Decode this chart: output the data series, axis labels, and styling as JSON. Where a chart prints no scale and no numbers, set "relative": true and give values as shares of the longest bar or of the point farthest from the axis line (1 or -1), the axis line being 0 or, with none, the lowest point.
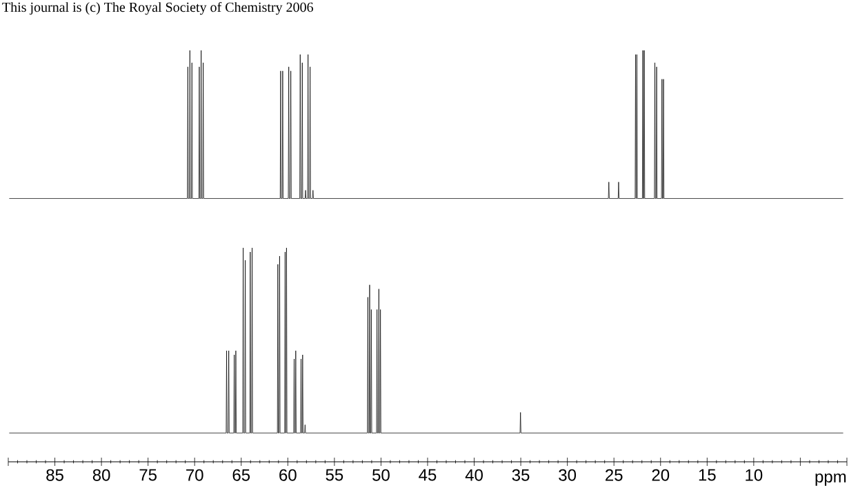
{
  "chart_data": {
    "type": "line",
    "relative": true,
    "xlim": [
      90,
      0
    ],
    "marker": "none",
    "xlabel": "ppm",
    "tick_labels": "x",
    "annotations": [
      "This journal is (c) The Royal Society of Chemistry 2006"
    ],
    "xticks": [
      {
        "value": 90,
        "label": null
      },
      {
        "value": 89,
        "label": null
      },
      {
        "value": 88,
        "label": null
      },
      {
        "value": 87,
        "label": null
      },
      {
        "value": 86,
        "label": null
      },
      85,
      {
        "value": 84,
        "label": null
      },
      {
        "value": 83,
        "label": null
      },
      {
        "value": 82,
        "label": null
      },
      {
        "value": 81,
        "label": null
      },
      80,
      {
        "value": 79,
        "label": null
      },
      {
        "value": 78,
        "label": null
      },
      {
        "value": 77,
        "label": null
      },
      {
        "value": 76,
        "label": null
      },
      75,
      {
        "value": 74,
        "label": null
      },
      {
        "value": 73,
        "label": null
      },
      {
        "value": 72,
        "label": null
      },
      {
        "value": 71,
        "label": null
      },
      70,
      {
        "value": 69,
        "label": null
      },
      {
        "value": 68,
        "label": null
      },
      {
        "value": 67,
        "label": null
      },
      {
        "value": 66,
        "label": null
      },
      65,
      {
        "value": 64,
        "label": null
      },
      {
        "value": 63,
        "label": null
      },
      {
        "value": 62,
        "label": null
      },
      {
        "value": 61,
        "label": null
      },
      60,
      {
        "value": 59,
        "label": null
      },
      {
        "value": 58,
        "label": null
      },
      {
        "value": 57,
        "label": null
      },
      {
        "value": 56,
        "label": null
      },
      55,
      {
        "value": 54,
        "label": null
      },
      {
        "value": 53,
        "label": null
      },
      {
        "value": 52,
        "label": null
      },
      {
        "value": 51,
        "label": null
      },
      50,
      {
        "value": 49,
        "label": null
      },
      {
        "value": 48,
        "label": null
      },
      {
        "value": 47,
        "label": null
      },
      {
        "value": 46,
        "label": null
      },
      45,
      {
        "value": 44,
        "label": null
      },
      {
        "value": 43,
        "label": null
      },
      {
        "value": 42,
        "label": null
      },
      {
        "value": 41,
        "label": null
      },
      40,
      {
        "value": 39,
        "label": null
      },
      {
        "value": 38,
        "label": null
      },
      {
        "value": 37,
        "label": null
      },
      {
        "value": 36,
        "label": null
      },
      35,
      {
        "value": 34,
        "label": null
      },
      {
        "value": 33,
        "label": null
      },
      {
        "value": 32,
        "label": null
      },
      {
        "value": 31,
        "label": null
      },
      30,
      {
        "value": 29,
        "label": null
      },
      {
        "value": 28,
        "label": null
      },
      {
        "value": 27,
        "label": null
      },
      {
        "value": 26,
        "label": null
      },
      25,
      {
        "value": 24,
        "label": null
      },
      {
        "value": 23,
        "label": null
      },
      {
        "value": 22,
        "label": null
      },
      {
        "value": 21,
        "label": null
      },
      20,
      {
        "value": 19,
        "label": null
      },
      {
        "value": 18,
        "label": null
      },
      {
        "value": 17,
        "label": null
      },
      {
        "value": 16,
        "label": null
      },
      15,
      {
        "value": 14,
        "label": null
      },
      {
        "value": 13,
        "label": null
      },
      {
        "value": 12,
        "label": null
      },
      {
        "value": 11,
        "label": null
      },
      10,
      {
        "value": 9,
        "label": null
      },
      {
        "value": 8,
        "label": null
      },
      {
        "value": 7,
        "label": null
      },
      {
        "value": 6,
        "label": null
      },
      {
        "value": 5,
        "label": null
      },
      {
        "value": 4,
        "label": null
      },
      {
        "value": 3,
        "label": null
      },
      {
        "value": 2,
        "label": null
      },
      {
        "value": 1,
        "label": null
      },
      {
        "value": 0,
        "label": null
      }
    ],
    "series": [
      {
        "color": "#000000",
        "x": [
          89.9,
          70.78,
          70.73,
          70.68,
          70.56,
          70.51,
          70.46,
          70.34,
          70.29,
          70.24,
          69.55,
          69.5,
          69.45,
          69.35,
          69.3,
          69.25,
          69.13,
          69.08,
          69.03,
          60.82,
          60.77,
          60.72,
          60.6,
          60.55,
          60.5,
          59.95,
          59.9,
          59.85,
          59.73,
          59.68,
          59.63,
          58.72,
          58.67,
          58.62,
          58.5,
          58.45,
          58.4,
          58.15,
          58.1,
          58.05,
          57.88,
          57.83,
          57.78,
          57.66,
          57.61,
          57.56,
          57.35,
          57.3,
          57.25,
          25.6,
          25.55,
          25.5,
          24.55,
          24.5,
          24.45,
          22.73,
          22.68,
          22.63,
          22.59,
          22.54,
          22.49,
          21.95,
          21.9,
          21.85,
          21.8,
          21.75,
          21.7,
          20.66,
          20.61,
          20.56,
          20.47,
          20.42,
          20.37,
          19.9,
          19.85,
          19.8,
          19.73,
          19.68,
          19.63,
          0.4
        ],
        "values": [
          0.64,
          0.64,
          0.96,
          0.64,
          0.64,
          1.0,
          0.64,
          0.64,
          0.97,
          0.64,
          0.64,
          0.96,
          0.64,
          0.64,
          1.0,
          0.64,
          0.64,
          0.97,
          0.64,
          0.64,
          0.95,
          0.64,
          0.64,
          0.95,
          0.64,
          0.64,
          0.96,
          0.64,
          0.64,
          0.95,
          0.64,
          0.64,
          0.99,
          0.64,
          0.64,
          0.97,
          0.64,
          0.64,
          0.66,
          0.64,
          0.64,
          0.99,
          0.64,
          0.64,
          0.96,
          0.64,
          0.64,
          0.66,
          0.64,
          0.64,
          0.68,
          0.64,
          0.64,
          0.68,
          0.64,
          0.64,
          0.99,
          0.64,
          0.64,
          0.99,
          0.64,
          0.64,
          1.0,
          0.64,
          0.64,
          1.0,
          0.64,
          0.64,
          0.97,
          0.64,
          0.64,
          0.96,
          0.64,
          0.64,
          0.93,
          0.64,
          0.64,
          0.93,
          0.64,
          0.64
        ]
      },
      {
        "color": "#000000",
        "x": [
          89.9,
          66.62,
          66.57,
          66.52,
          66.39,
          66.34,
          66.29,
          65.8,
          65.75,
          65.7,
          65.63,
          65.58,
          65.53,
          64.84,
          64.79,
          64.74,
          64.62,
          64.57,
          64.52,
          64.08,
          64.03,
          63.98,
          63.88,
          63.83,
          63.78,
          61.12,
          61.07,
          61.02,
          60.93,
          60.88,
          60.83,
          60.34,
          60.29,
          60.24,
          60.19,
          60.14,
          60.09,
          59.37,
          59.32,
          59.27,
          59.2,
          59.15,
          59.1,
          58.63,
          58.58,
          58.53,
          58.46,
          58.41,
          58.36,
          58.2,
          58.15,
          58.1,
          51.46,
          51.41,
          51.36,
          51.27,
          51.22,
          51.17,
          51.09,
          51.04,
          50.99,
          50.48,
          50.43,
          50.38,
          50.28,
          50.23,
          50.18,
          50.11,
          50.06,
          50.01,
          35.08,
          35.03,
          34.98,
          0.4
        ],
        "values": [
          0.07,
          0.07,
          0.27,
          0.07,
          0.07,
          0.27,
          0.07,
          0.07,
          0.26,
          0.07,
          0.07,
          0.27,
          0.07,
          0.07,
          0.52,
          0.07,
          0.07,
          0.49,
          0.07,
          0.07,
          0.51,
          0.07,
          0.07,
          0.52,
          0.07,
          0.07,
          0.48,
          0.07,
          0.07,
          0.5,
          0.07,
          0.07,
          0.51,
          0.07,
          0.07,
          0.52,
          0.07,
          0.07,
          0.25,
          0.07,
          0.07,
          0.27,
          0.07,
          0.07,
          0.25,
          0.07,
          0.07,
          0.26,
          0.07,
          0.07,
          0.09,
          0.07,
          0.07,
          0.4,
          0.07,
          0.07,
          0.43,
          0.07,
          0.07,
          0.37,
          0.07,
          0.07,
          0.37,
          0.07,
          0.07,
          0.42,
          0.07,
          0.07,
          0.37,
          0.07,
          0.07,
          0.12,
          0.07,
          0.07
        ]
      }
    ]
  }
}
